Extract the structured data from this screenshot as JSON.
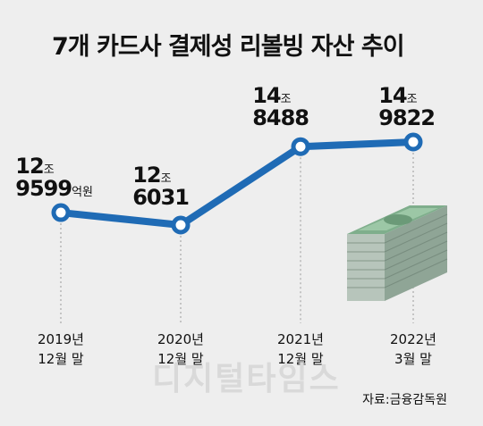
{
  "chart_data": {
    "type": "line",
    "title": "7개 카드사 결제성 리볼빙 자산 추이",
    "categories": [
      "2019년 12월 말",
      "2020년 12월 말",
      "2021년 12월 말",
      "2022년 3월 말"
    ],
    "x_labels": [
      {
        "line1": "2019년",
        "line2": "12월 말"
      },
      {
        "line1": "2020년",
        "line2": "12월 말"
      },
      {
        "line1": "2021년",
        "line2": "12월 말"
      },
      {
        "line1": "2022년",
        "line2": "3월 말"
      }
    ],
    "values": [
      129599,
      126031,
      148488,
      149822
    ],
    "unit": "억원",
    "value_labels": [
      {
        "top": "12",
        "top_unit": "조",
        "bottom": "9599",
        "bottom_unit": "억원"
      },
      {
        "top": "12",
        "top_unit": "조",
        "bottom": "6031",
        "bottom_unit": ""
      },
      {
        "top": "14",
        "top_unit": "조",
        "bottom": "8488",
        "bottom_unit": ""
      },
      {
        "top": "14",
        "top_unit": "조",
        "bottom": "9822",
        "bottom_unit": ""
      }
    ],
    "source": "자료:금융감독원",
    "colors": {
      "line": "#1f6bb5",
      "marker_fill": "#ffffff",
      "background": "#eeeeee"
    }
  },
  "watermark": "디지털타임스",
  "illustration": "money-stack-icon"
}
